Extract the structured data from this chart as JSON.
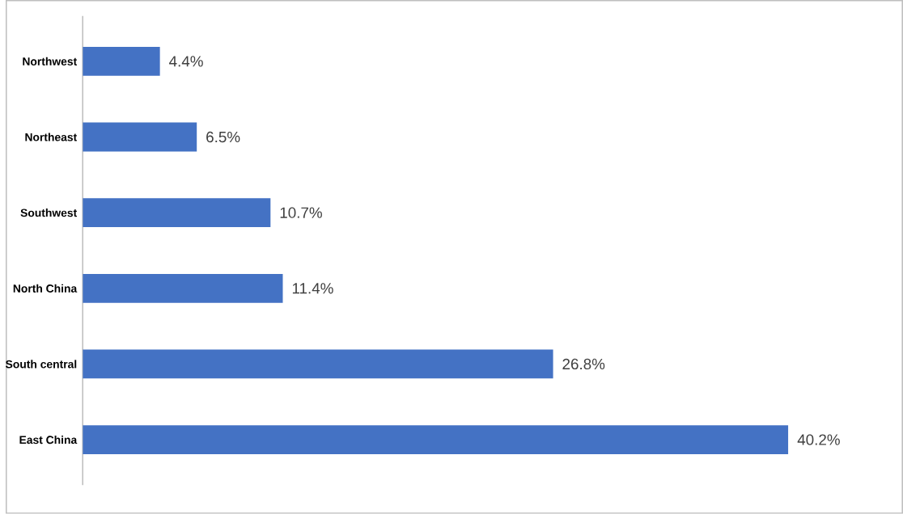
{
  "chart_data": {
    "type": "bar",
    "orientation": "horizontal",
    "categories": [
      "Northwest",
      "Northeast",
      "Southwest",
      "North China",
      "South central",
      "East China"
    ],
    "values": [
      4.4,
      6.5,
      10.7,
      11.4,
      26.8,
      40.2
    ],
    "value_labels": [
      "4.4%",
      "6.5%",
      "10.7%",
      "11.4%",
      "26.8%",
      "40.2%"
    ],
    "color": "#4472c4"
  }
}
